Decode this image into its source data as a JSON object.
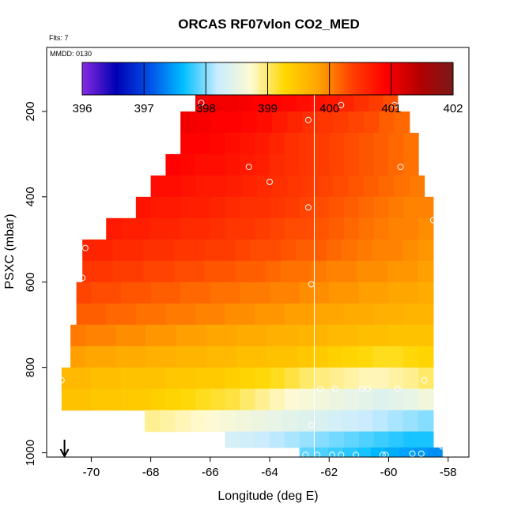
{
  "chart_data": {
    "type": "heatmap",
    "title": "ORCAS RF07vlon CO2_MED",
    "flts_label": "Flts: 7",
    "mmdd_label": "MMDD: 0130",
    "xlabel": "Longitude (deg E)",
    "ylabel": "PSXC (mbar)",
    "xlim": [
      -71.5,
      -57.3
    ],
    "ylim": [
      1010,
      50
    ],
    "x_ticks": [
      -70,
      -68,
      -66,
      -64,
      -62,
      -60,
      -58
    ],
    "y_ticks": [
      200,
      400,
      600,
      800,
      1000
    ],
    "colorbar": {
      "range": [
        396,
        402
      ],
      "ticks": [
        396,
        397,
        398,
        399,
        400,
        401,
        402
      ],
      "stops": [
        "#8a2be2",
        "#0000b4",
        "#0050e8",
        "#00bfff",
        "#c8ecff",
        "#fffad2",
        "#ffd700",
        "#ffa500",
        "#ff4000",
        "#ff0000",
        "#b40000",
        "#7a1a1a"
      ]
    },
    "reference_line_x": -62.5,
    "marker_x": -70.9,
    "rows": [
      {
        "p": 175,
        "x0": -66.5,
        "x1": -59.7,
        "values": [
          401.0,
          401.0,
          401.0,
          400.95,
          400.9,
          400.9,
          400.85,
          400.8,
          400.75,
          400.7,
          400.6,
          400.5,
          400.4,
          400.3
        ]
      },
      {
        "p": 225,
        "x0": -67.0,
        "x1": -59.3,
        "values": [
          401.0,
          400.95,
          400.9,
          400.9,
          400.85,
          400.8,
          400.7,
          400.6,
          400.5,
          400.45,
          400.4,
          400.35,
          400.3,
          400.2,
          400.15
        ]
      },
      {
        "p": 275,
        "x0": -67.0,
        "x1": -59.0,
        "values": [
          400.9,
          400.9,
          400.85,
          400.8,
          400.75,
          400.7,
          400.6,
          400.5,
          400.45,
          400.4,
          400.35,
          400.3,
          400.25,
          400.2,
          400.15,
          400.1
        ]
      },
      {
        "p": 325,
        "x0": -67.5,
        "x1": -59.0,
        "values": [
          400.9,
          400.85,
          400.8,
          400.8,
          400.75,
          400.7,
          400.65,
          400.55,
          400.5,
          400.45,
          400.4,
          400.35,
          400.3,
          400.25,
          400.2,
          400.15,
          400.1
        ]
      },
      {
        "p": 375,
        "x0": -68.0,
        "x1": -58.8,
        "values": [
          400.8,
          400.8,
          400.75,
          400.7,
          400.7,
          400.65,
          400.6,
          400.55,
          400.5,
          400.45,
          400.4,
          400.35,
          400.3,
          400.25,
          400.2,
          400.15,
          400.1,
          400.05
        ]
      },
      {
        "p": 425,
        "x0": -68.5,
        "x1": -58.5,
        "values": [
          400.75,
          400.7,
          400.7,
          400.65,
          400.65,
          400.6,
          400.55,
          400.5,
          400.5,
          400.45,
          400.4,
          400.35,
          400.3,
          400.25,
          400.2,
          400.15,
          400.1,
          400.05,
          400.0,
          400.0
        ]
      },
      {
        "p": 475,
        "x0": -69.5,
        "x1": -58.5,
        "values": [
          400.7,
          400.65,
          400.65,
          400.6,
          400.6,
          400.55,
          400.55,
          400.5,
          400.45,
          400.45,
          400.4,
          400.35,
          400.3,
          400.3,
          400.25,
          400.2,
          400.15,
          400.1,
          400.05,
          400.0,
          400.0,
          399.95
        ]
      },
      {
        "p": 525,
        "x0": -70.3,
        "x1": -58.5,
        "values": [
          400.6,
          400.6,
          400.55,
          400.55,
          400.5,
          400.5,
          400.45,
          400.45,
          400.4,
          400.4,
          400.35,
          400.3,
          400.3,
          400.25,
          400.2,
          400.2,
          400.15,
          400.1,
          400.05,
          400.0,
          400.0,
          399.95,
          399.9
        ]
      },
      {
        "p": 575,
        "x0": -70.3,
        "x1": -58.5,
        "values": [
          400.45,
          400.45,
          400.4,
          400.4,
          400.35,
          400.35,
          400.3,
          400.3,
          400.25,
          400.25,
          400.2,
          400.2,
          400.15,
          400.1,
          400.1,
          400.05,
          400.0,
          400.0,
          399.95,
          399.95,
          399.9,
          399.9,
          399.85
        ]
      },
      {
        "p": 625,
        "x0": -70.5,
        "x1": -58.5,
        "values": [
          400.35,
          400.3,
          400.3,
          400.25,
          400.25,
          400.2,
          400.2,
          400.15,
          400.15,
          400.1,
          400.1,
          400.05,
          400.05,
          400.0,
          400.0,
          399.95,
          399.95,
          399.9,
          399.9,
          399.85,
          399.85,
          399.8,
          399.8,
          399.75
        ]
      },
      {
        "p": 675,
        "x0": -70.5,
        "x1": -58.5,
        "values": [
          400.2,
          400.2,
          400.15,
          400.15,
          400.1,
          400.1,
          400.05,
          400.05,
          400.0,
          400.0,
          399.95,
          399.95,
          399.9,
          399.9,
          399.85,
          399.85,
          399.8,
          399.8,
          399.75,
          399.75,
          399.7,
          399.7,
          399.65,
          399.65
        ]
      },
      {
        "p": 725,
        "x0": -70.7,
        "x1": -58.5,
        "values": [
          400.05,
          400.0,
          400.0,
          399.95,
          399.95,
          399.9,
          399.9,
          399.85,
          399.85,
          399.8,
          399.8,
          399.75,
          399.75,
          399.7,
          399.7,
          399.65,
          399.65,
          399.6,
          399.6,
          399.55,
          399.55,
          399.5,
          399.5,
          399.5
        ]
      },
      {
        "p": 775,
        "x0": -70.7,
        "x1": -58.5,
        "values": [
          399.85,
          399.8,
          399.8,
          399.75,
          399.75,
          399.7,
          399.7,
          399.65,
          399.65,
          399.6,
          399.6,
          399.55,
          399.55,
          399.5,
          399.5,
          399.45,
          399.4,
          399.35,
          399.3,
          399.25,
          399.2,
          399.2,
          399.25,
          399.3
        ]
      },
      {
        "p": 825,
        "x0": -71.0,
        "x1": -58.5,
        "values": [
          399.6,
          399.6,
          399.55,
          399.55,
          399.5,
          399.5,
          399.5,
          399.45,
          399.45,
          399.4,
          399.4,
          399.35,
          399.3,
          399.25,
          399.2,
          399.1,
          399.0,
          398.95,
          398.9,
          398.85,
          398.8,
          398.8,
          398.85,
          398.9,
          399.0
        ]
      },
      {
        "p": 875,
        "x0": -71.0,
        "x1": -58.5,
        "values": [
          399.5,
          399.5,
          399.45,
          399.45,
          399.4,
          399.4,
          399.35,
          399.3,
          399.25,
          399.2,
          399.15,
          399.1,
          399.0,
          398.9,
          398.8,
          398.7,
          398.65,
          398.6,
          398.55,
          398.5,
          398.45,
          398.4,
          398.45,
          398.5,
          398.6
        ]
      },
      {
        "p": 925,
        "x0": -68.2,
        "x1": -58.5,
        "values": [
          398.9,
          398.85,
          398.8,
          398.75,
          398.7,
          398.65,
          398.6,
          398.55,
          398.5,
          398.45,
          398.4,
          398.35,
          398.3,
          398.25,
          398.2,
          398.15,
          398.1,
          398.05,
          398.0
        ]
      },
      {
        "p": 975,
        "x0": -65.5,
        "x1": -58.5,
        "values": [
          398.3,
          398.25,
          398.2,
          398.15,
          398.1,
          398.05,
          398.0,
          397.95,
          397.9,
          397.85,
          397.8,
          397.75,
          397.7,
          397.7
        ]
      },
      {
        "p": 1000,
        "x0": -63.0,
        "x1": -58.2,
        "values": [
          397.9,
          397.85,
          397.8,
          397.75,
          397.7,
          397.6,
          397.55,
          397.5,
          397.45,
          397.4
        ]
      }
    ],
    "points": [
      {
        "x": -66.3,
        "p": 180
      },
      {
        "x": -62.7,
        "p": 220
      },
      {
        "x": -61.6,
        "p": 185
      },
      {
        "x": -59.8,
        "p": 185
      },
      {
        "x": -64.7,
        "p": 330
      },
      {
        "x": -64.0,
        "p": 365
      },
      {
        "x": -59.6,
        "p": 330
      },
      {
        "x": -62.7,
        "p": 425
      },
      {
        "x": -58.5,
        "p": 455
      },
      {
        "x": -70.2,
        "p": 520
      },
      {
        "x": -70.3,
        "p": 590
      },
      {
        "x": -62.6,
        "p": 605
      },
      {
        "x": -62.3,
        "p": 850
      },
      {
        "x": -61.8,
        "p": 850
      },
      {
        "x": -60.9,
        "p": 850
      },
      {
        "x": -60.7,
        "p": 850
      },
      {
        "x": -59.7,
        "p": 850
      },
      {
        "x": -58.8,
        "p": 830
      },
      {
        "x": -71.0,
        "p": 830
      },
      {
        "x": -62.6,
        "p": 935
      },
      {
        "x": -62.8,
        "p": 1005
      },
      {
        "x": -62.4,
        "p": 1005
      },
      {
        "x": -61.9,
        "p": 1005
      },
      {
        "x": -61.6,
        "p": 1005
      },
      {
        "x": -61.1,
        "p": 1005
      },
      {
        "x": -60.2,
        "p": 1005
      },
      {
        "x": -60.1,
        "p": 1005
      },
      {
        "x": -59.2,
        "p": 1002
      },
      {
        "x": -58.9,
        "p": 1002
      },
      {
        "x": -58.2,
        "p": 985
      }
    ]
  }
}
